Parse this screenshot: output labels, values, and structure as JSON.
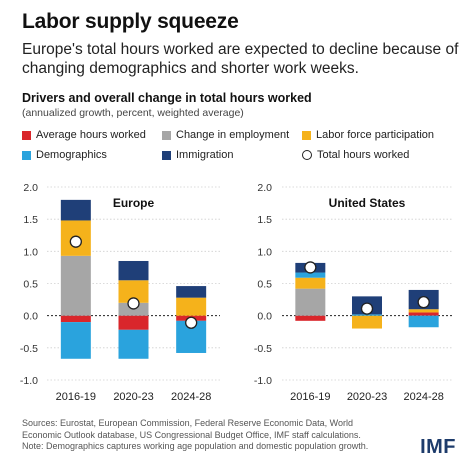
{
  "header": {
    "title": "Labor supply squeeze",
    "subtitle": "Europe's total hours worked are expected to decline because of changing demographics and shorter work weeks."
  },
  "chart_header": {
    "title": "Drivers and overall change in total hours worked",
    "subtitle": "(annualized growth, percent, weighted average)"
  },
  "legend": [
    {
      "name": "Average hours worked",
      "color": "#d9262b",
      "shape": "square"
    },
    {
      "name": "Change in employment",
      "color": "#a6a6a6",
      "shape": "square"
    },
    {
      "name": "Labor force participation",
      "color": "#f5b21b",
      "shape": "square"
    },
    {
      "name": "Demographics",
      "color": "#2aa3dd",
      "shape": "square"
    },
    {
      "name": "Immigration",
      "color": "#1f3f78",
      "shape": "square"
    },
    {
      "name": "Total hours worked",
      "color": "#ffffff",
      "shape": "circle"
    }
  ],
  "chart_data": [
    {
      "type": "bar",
      "stacked": true,
      "panel_title": "Europe",
      "categories": [
        "2016-19",
        "2020-23",
        "2024-28"
      ],
      "y_ticks": [
        "2.0",
        "1.5",
        "1.0",
        "0.5",
        "0.0",
        "-0.5",
        "-1.0"
      ],
      "ylim": [
        -1.0,
        2.0
      ],
      "series": [
        {
          "name": "Average hours worked",
          "color": "#d9262b",
          "values": [
            -0.1,
            -0.22,
            -0.08
          ]
        },
        {
          "name": "Change in employment",
          "color": "#a6a6a6",
          "values": [
            0.93,
            0.2,
            0.0
          ]
        },
        {
          "name": "Labor force participation",
          "color": "#f5b21b",
          "values": [
            0.55,
            0.35,
            0.28
          ]
        },
        {
          "name": "Demographics",
          "color": "#2aa3dd",
          "values": [
            -0.57,
            -0.45,
            -0.5
          ]
        },
        {
          "name": "Immigration",
          "color": "#1f3f78",
          "values": [
            0.32,
            0.3,
            0.18
          ]
        }
      ],
      "total": {
        "name": "Total hours worked",
        "values": [
          1.15,
          0.19,
          -0.11
        ]
      }
    },
    {
      "type": "bar",
      "stacked": true,
      "panel_title": "United States",
      "categories": [
        "2016-19",
        "2020-23",
        "2024-28"
      ],
      "y_ticks": [
        "2.0",
        "1.5",
        "1.0",
        "0.5",
        "0.0",
        "-0.5",
        "-1.0"
      ],
      "ylim": [
        -1.0,
        2.0
      ],
      "series": [
        {
          "name": "Average hours worked",
          "color": "#d9262b",
          "values": [
            -0.08,
            0.0,
            0.05
          ]
        },
        {
          "name": "Change in employment",
          "color": "#a6a6a6",
          "values": [
            0.42,
            0.0,
            0.0
          ]
        },
        {
          "name": "Labor force participation",
          "color": "#f5b21b",
          "values": [
            0.17,
            -0.2,
            0.05
          ]
        },
        {
          "name": "Demographics",
          "color": "#2aa3dd",
          "values": [
            0.08,
            0.02,
            -0.18
          ]
        },
        {
          "name": "Immigration",
          "color": "#1f3f78",
          "values": [
            0.15,
            0.28,
            0.3
          ]
        }
      ],
      "total": {
        "name": "Total hours worked",
        "values": [
          0.75,
          0.11,
          0.21
        ]
      }
    }
  ],
  "footer": {
    "lines": [
      "Sources: Eurostat, European Commission, Federal Reserve Economic Data, World",
      "Economic Outlook database, US Congressional Budget Office, IMF staff calculations.",
      "Note: Demographics captures working age population and domestic population growth."
    ],
    "logo": "IMF"
  }
}
